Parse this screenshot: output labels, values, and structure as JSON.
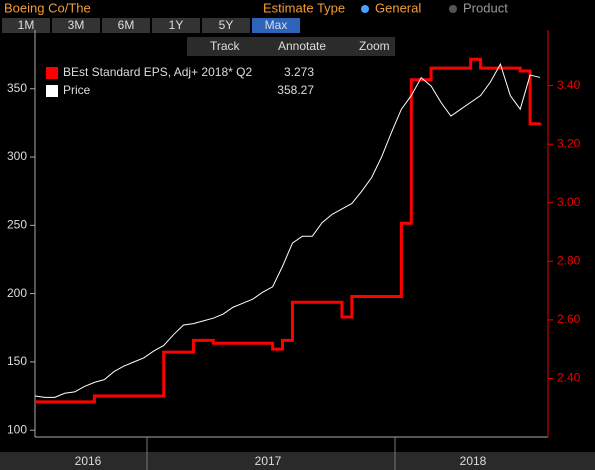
{
  "header": {
    "security": "Boeing Co/The",
    "estimate_type_label": "Estimate Type",
    "options": [
      "General",
      "Product"
    ]
  },
  "range_buttons": [
    "1M",
    "3M",
    "6M",
    "1Y",
    "5Y",
    "Max"
  ],
  "tools": [
    "Track",
    "Annotate",
    "Zoom"
  ],
  "chart_data": {
    "type": "line",
    "x_axis_labels": [
      "2016",
      "2017",
      "2018"
    ],
    "ylim": [
      95,
      393
    ],
    "yticks": [
      100,
      150,
      200,
      250,
      300,
      350
    ],
    "y2lim": [
      2.2,
      3.59
    ],
    "y2ticks": [
      {
        "value": 2.4,
        "label": "2.40"
      },
      {
        "value": 2.6,
        "label": "2.60"
      },
      {
        "value": 2.8,
        "label": "2.80"
      },
      {
        "value": 3.0,
        "label": "3.00"
      },
      {
        "value": 3.2,
        "label": "3.20"
      },
      {
        "value": 3.4,
        "label": "3.40"
      }
    ],
    "series": [
      {
        "name": "BEst Standard EPS, Adj+ 2018* Q2",
        "legend_value": "3.273",
        "color": "#ff0000",
        "axis": "y2",
        "step": true,
        "values": [
          2.32,
          2.32,
          2.32,
          2.32,
          2.32,
          2.32,
          2.34,
          2.34,
          2.34,
          2.34,
          2.34,
          2.34,
          2.34,
          2.49,
          2.49,
          2.49,
          2.53,
          2.53,
          2.52,
          2.52,
          2.52,
          2.52,
          2.52,
          2.52,
          2.5,
          2.53,
          2.66,
          2.66,
          2.66,
          2.66,
          2.66,
          2.61,
          2.68,
          2.68,
          2.68,
          2.68,
          2.68,
          2.93,
          3.42,
          3.42,
          3.46,
          3.46,
          3.46,
          3.46,
          3.49,
          3.46,
          3.46,
          3.46,
          3.46,
          3.45,
          3.27,
          3.273
        ]
      },
      {
        "name": "Price",
        "legend_value": "358.27",
        "color": "#ffffff",
        "values": [
          125,
          124,
          124,
          127,
          128,
          132,
          135,
          137,
          143,
          147,
          150,
          153,
          158,
          162,
          170,
          177,
          178,
          180,
          182,
          185,
          190,
          193,
          196,
          201,
          205,
          220,
          237,
          242,
          242,
          252,
          258,
          262,
          266,
          275,
          285,
          300,
          318,
          335,
          345,
          358,
          352,
          340,
          330,
          335,
          340,
          345,
          355,
          368,
          345,
          335,
          360,
          358.27
        ]
      }
    ]
  }
}
